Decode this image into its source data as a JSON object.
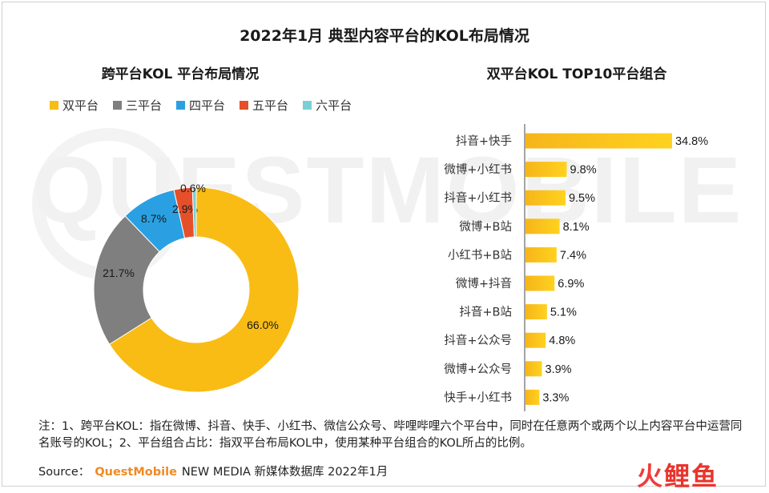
{
  "title": "2022年1月 典型内容平台的KOL布局情况",
  "left_title": "跨平台KOL 平台布局情况",
  "right_title": "双平台KOL TOP10平台组合",
  "note": "注：1、跨平台KOL：指在微博、抖音、快手、小红书、微信公众号、哔哩哔哩六个平台中，同时在任意两个或两个以上内容平台中运营同名账号的KOL；2、平台组合占比：指双平台布局KOL中，使用某种平台组合的KOL所占的比例。",
  "source_label": "Source：",
  "source_brand": "QuestMobile",
  "source_rest": "NEW MEDIA 新媒体数据库 2022年1月",
  "watermark": "QUESTMOBILE",
  "logo": {
    "c1": "火",
    "c2": "鲤鱼"
  },
  "chart_data": [
    {
      "type": "pie",
      "variant": "donut",
      "title": "跨平台KOL 平台布局情况",
      "legend_position": "top-left",
      "categories": [
        "双平台",
        "三平台",
        "四平台",
        "五平台",
        "六平台"
      ],
      "values": [
        66.0,
        21.7,
        8.7,
        2.9,
        0.6
      ],
      "labels": [
        "66.0%",
        "21.7%",
        "8.7%",
        "2.9%",
        "0.6%"
      ],
      "colors": [
        "#F9BC14",
        "#7F7F7F",
        "#2AA0E2",
        "#E5502A",
        "#7ACFD6"
      ]
    },
    {
      "type": "bar",
      "orientation": "horizontal",
      "title": "双平台KOL TOP10平台组合",
      "categories": [
        "抖音+快手",
        "微博+小红书",
        "抖音+小红书",
        "微博+B站",
        "小红书+B站",
        "微博+抖音",
        "抖音+B站",
        "抖音+公众号",
        "微博+公众号",
        "快手+小红书"
      ],
      "values": [
        34.8,
        9.8,
        9.5,
        8.1,
        7.4,
        6.9,
        5.1,
        4.8,
        3.9,
        3.3
      ],
      "labels": [
        "34.8%",
        "9.8%",
        "9.5%",
        "8.1%",
        "7.4%",
        "6.9%",
        "5.1%",
        "4.8%",
        "3.9%",
        "3.3%"
      ],
      "grid": false,
      "colors": {
        "bar_start": "#F6B51A",
        "bar_end": "#FFD21F"
      }
    }
  ]
}
